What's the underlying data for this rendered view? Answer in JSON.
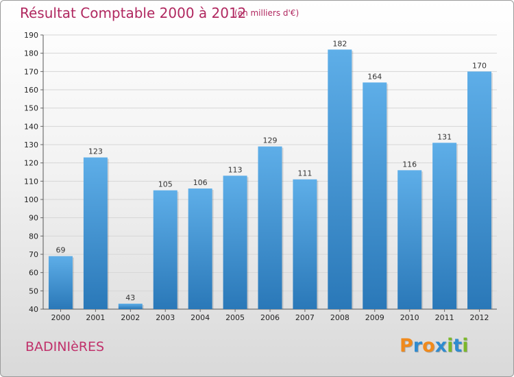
{
  "title": "Résultat Comptable 2000 à 2012",
  "subtitle": "(en milliers d'€)",
  "commune": "BADINIèRES",
  "logo": {
    "letters": [
      "P",
      "r",
      "o",
      "x",
      "i",
      "t",
      "i"
    ],
    "colors": [
      "#f08a1c",
      "#2f8bd0",
      "#f08a1c",
      "#2f8bd0",
      "#7bb82a",
      "#2f8bd0",
      "#7bb82a"
    ]
  },
  "colors": {
    "bar_top": "#5eaee8",
    "bar_bottom": "#2a78b8",
    "title": "#b0275f"
  },
  "chart_data": {
    "type": "bar",
    "title": "Résultat Comptable 2000 à 2012",
    "xlabel": "",
    "ylabel": "",
    "ylim": [
      40,
      190
    ],
    "yticks": [
      40,
      50,
      60,
      70,
      80,
      90,
      100,
      110,
      120,
      130,
      140,
      150,
      160,
      170,
      180,
      190
    ],
    "grid": true,
    "categories": [
      "2000",
      "2001",
      "2002",
      "2003",
      "2004",
      "2005",
      "2006",
      "2007",
      "2008",
      "2009",
      "2010",
      "2011",
      "2012"
    ],
    "values": [
      69,
      123,
      43,
      105,
      106,
      113,
      129,
      111,
      182,
      164,
      116,
      131,
      170
    ]
  }
}
